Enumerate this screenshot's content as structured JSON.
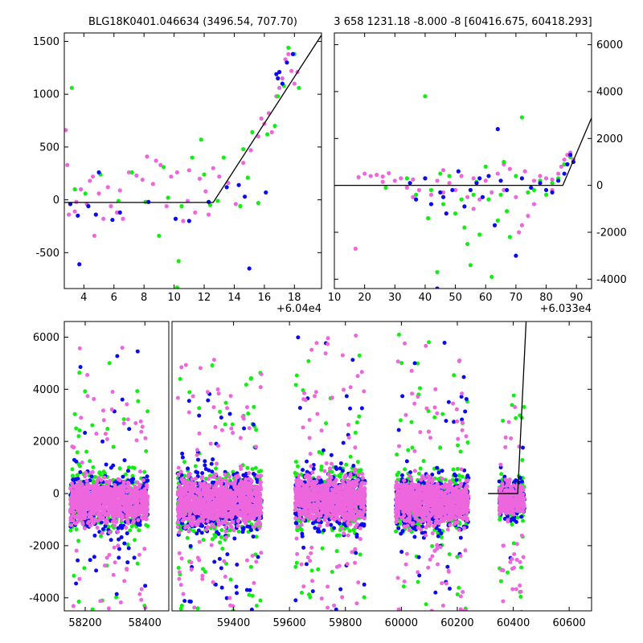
{
  "chart_data": [
    {
      "id": "top-left",
      "type": "scatter",
      "title": "BLG18K0401.046634 (3496.54, 707.70)",
      "x_offset_label": "+6.04e4",
      "xlim": [
        2.7,
        19.8
      ],
      "ylim": [
        -840,
        1580
      ],
      "x_ticks": [
        4,
        6,
        8,
        10,
        12,
        14,
        16,
        18
      ],
      "y_ticks": [
        -500,
        0,
        500,
        1000,
        1500
      ],
      "y_axis_side": "left",
      "colors": {
        "magenta": "#ee66dd",
        "green": "#11ee11",
        "blue": "#0b0bee",
        "model": "#000000"
      },
      "model_line": {
        "x": [
          2.7,
          12.6,
          19.8
        ],
        "y": [
          -25,
          -25,
          1560
        ]
      },
      "series": [
        {
          "color": "magenta",
          "points": [
            [
              2.8,
              660
            ],
            [
              2.9,
              330
            ],
            [
              3.0,
              -140
            ],
            [
              3.5,
              -20
            ],
            [
              3.8,
              100
            ],
            [
              4.2,
              -40
            ],
            [
              4.4,
              180
            ],
            [
              4.6,
              220
            ],
            [
              4.7,
              -340
            ],
            [
              5.0,
              60
            ],
            [
              5.3,
              -180
            ],
            [
              5.6,
              120
            ],
            [
              5.8,
              -60
            ],
            [
              6.2,
              -120
            ],
            [
              6.6,
              -180
            ],
            [
              7.0,
              260
            ],
            [
              7.5,
              230
            ],
            [
              7.9,
              190
            ],
            [
              8.2,
              410
            ],
            [
              8.8,
              370
            ],
            [
              9.1,
              330
            ],
            [
              9.5,
              -60
            ],
            [
              9.8,
              220
            ],
            [
              10.2,
              260
            ],
            [
              10.6,
              -200
            ],
            [
              11.0,
              280
            ],
            [
              11.4,
              -120
            ],
            [
              11.7,
              200
            ],
            [
              12.1,
              80
            ],
            [
              12.6,
              300
            ],
            [
              13.0,
              220
            ],
            [
              13.6,
              160
            ],
            [
              14.1,
              -40
            ],
            [
              14.6,
              350
            ],
            [
              15.1,
              470
            ],
            [
              15.6,
              600
            ],
            [
              16.0,
              720
            ],
            [
              16.3,
              820
            ],
            [
              16.5,
              640
            ],
            [
              16.8,
              980
            ],
            [
              17.0,
              1060
            ],
            [
              17.2,
              1150
            ],
            [
              17.4,
              1330
            ],
            [
              17.6,
              1380
            ],
            [
              17.8,
              1220
            ],
            [
              18.0,
              1100
            ],
            [
              18.2,
              1210
            ],
            [
              3.4,
              -110
            ],
            [
              6.4,
              90
            ],
            [
              8.6,
              150
            ],
            [
              10.9,
              -10
            ],
            [
              12.3,
              -140
            ],
            [
              15.8,
              770
            ]
          ]
        },
        {
          "color": "green",
          "points": [
            [
              3.2,
              1060
            ],
            [
              3.4,
              100
            ],
            [
              4.1,
              60
            ],
            [
              5.1,
              240
            ],
            [
              6.3,
              -10
            ],
            [
              7.2,
              260
            ],
            [
              8.1,
              -20
            ],
            [
              9.0,
              -340
            ],
            [
              9.3,
              310
            ],
            [
              9.6,
              20
            ],
            [
              10.2,
              -830
            ],
            [
              10.3,
              -580
            ],
            [
              10.5,
              -60
            ],
            [
              11.2,
              400
            ],
            [
              11.8,
              570
            ],
            [
              12.4,
              -50
            ],
            [
              12.9,
              -10
            ],
            [
              13.3,
              400
            ],
            [
              14.4,
              -60
            ],
            [
              14.6,
              480
            ],
            [
              15.2,
              640
            ],
            [
              15.6,
              -30
            ],
            [
              16.2,
              620
            ],
            [
              16.7,
              700
            ],
            [
              16.9,
              980
            ],
            [
              17.3,
              1080
            ],
            [
              17.6,
              1440
            ],
            [
              18.0,
              1380
            ],
            [
              18.3,
              1060
            ],
            [
              12.0,
              240
            ],
            [
              14.9,
              210
            ]
          ]
        },
        {
          "color": "blue",
          "points": [
            [
              3.1,
              -40
            ],
            [
              3.6,
              -150
            ],
            [
              3.7,
              -610
            ],
            [
              4.3,
              -60
            ],
            [
              4.8,
              -140
            ],
            [
              5.0,
              260
            ],
            [
              5.9,
              -190
            ],
            [
              6.4,
              -120
            ],
            [
              8.3,
              -20
            ],
            [
              10.1,
              -180
            ],
            [
              11.0,
              -200
            ],
            [
              12.3,
              -20
            ],
            [
              13.5,
              120
            ],
            [
              14.7,
              30
            ],
            [
              15.0,
              -650
            ],
            [
              16.1,
              70
            ],
            [
              16.8,
              1190
            ],
            [
              17.0,
              1210
            ],
            [
              17.2,
              1100
            ],
            [
              17.5,
              1300
            ],
            [
              17.9,
              1380
            ],
            [
              14.3,
              140
            ],
            [
              16.9,
              1150
            ]
          ]
        }
      ]
    },
    {
      "id": "top-right",
      "type": "scatter",
      "title": "3 658 1231.18 -8.000 -8 [60416.675, 60418.293]",
      "x_offset_label": "+6.033e4",
      "xlim": [
        10,
        95
      ],
      "ylim": [
        -4400,
        6500
      ],
      "x_ticks": [
        10,
        20,
        30,
        40,
        50,
        60,
        70,
        80,
        90
      ],
      "y_ticks": [
        -4000,
        -2000,
        0,
        2000,
        4000,
        6000
      ],
      "y_axis_side": "right",
      "colors": {
        "magenta": "#ee66dd",
        "green": "#11ee11",
        "blue": "#0b0bee",
        "model": "#000000"
      },
      "model_line": {
        "x": [
          10,
          85.5,
          95
        ],
        "y": [
          0,
          0,
          2880
        ]
      },
      "series": [
        {
          "color": "magenta",
          "points": [
            [
              17,
              -2700
            ],
            [
              18,
              350
            ],
            [
              20,
              500
            ],
            [
              22,
              400
            ],
            [
              24,
              450
            ],
            [
              26,
              380
            ],
            [
              28,
              520
            ],
            [
              30,
              200
            ],
            [
              32,
              300
            ],
            [
              34,
              -100
            ],
            [
              36,
              250
            ],
            [
              38,
              -200
            ],
            [
              40,
              300
            ],
            [
              42,
              -400
            ],
            [
              44,
              200
            ],
            [
              46,
              -300
            ],
            [
              48,
              100
            ],
            [
              50,
              -200
            ],
            [
              52,
              400
            ],
            [
              54,
              -500
            ],
            [
              56,
              300
            ],
            [
              58,
              -600
            ],
            [
              60,
              200
            ],
            [
              62,
              -300
            ],
            [
              64,
              500
            ],
            [
              66,
              -200
            ],
            [
              68,
              700
            ],
            [
              70,
              -500
            ],
            [
              71,
              -2000
            ],
            [
              72,
              -1700
            ],
            [
              73,
              600
            ],
            [
              74,
              -1300
            ],
            [
              76,
              200
            ],
            [
              78,
              400
            ],
            [
              80,
              300
            ],
            [
              82,
              250
            ],
            [
              84,
              500
            ],
            [
              85,
              800
            ],
            [
              86,
              1100
            ],
            [
              87,
              1300
            ],
            [
              88,
              1400
            ],
            [
              89,
              1100
            ],
            [
              26,
              150
            ],
            [
              36,
              -500
            ],
            [
              46,
              650
            ],
            [
              56,
              -1000
            ],
            [
              66,
              900
            ],
            [
              76,
              -800
            ],
            [
              82,
              -200
            ]
          ]
        },
        {
          "color": "green",
          "points": [
            [
              27,
              -100
            ],
            [
              34,
              300
            ],
            [
              37,
              -400
            ],
            [
              40,
              3800
            ],
            [
              41,
              -1400
            ],
            [
              42,
              -200
            ],
            [
              44,
              -3700
            ],
            [
              46,
              -800
            ],
            [
              48,
              400
            ],
            [
              50,
              -1200
            ],
            [
              52,
              -600
            ],
            [
              53,
              -1800
            ],
            [
              54,
              -2500
            ],
            [
              55,
              -3400
            ],
            [
              56,
              -400
            ],
            [
              58,
              -2100
            ],
            [
              60,
              800
            ],
            [
              61,
              -600
            ],
            [
              62,
              -3900
            ],
            [
              64,
              -1500
            ],
            [
              65,
              -400
            ],
            [
              66,
              1000
            ],
            [
              67,
              -1100
            ],
            [
              68,
              -2200
            ],
            [
              70,
              400
            ],
            [
              72,
              2900
            ],
            [
              74,
              -300
            ],
            [
              76,
              -200
            ],
            [
              78,
              200
            ],
            [
              80,
              -400
            ],
            [
              82,
              100
            ],
            [
              84,
              300
            ],
            [
              86,
              900
            ],
            [
              88,
              1200
            ],
            [
              45,
              500
            ],
            [
              57,
              150
            ]
          ]
        },
        {
          "color": "blue",
          "points": [
            [
              35,
              100
            ],
            [
              37,
              -600
            ],
            [
              40,
              300
            ],
            [
              42,
              -800
            ],
            [
              44,
              -4400
            ],
            [
              45,
              -300
            ],
            [
              47,
              -1200
            ],
            [
              49,
              -200
            ],
            [
              51,
              600
            ],
            [
              53,
              -900
            ],
            [
              55,
              -200
            ],
            [
              57,
              100
            ],
            [
              59,
              -500
            ],
            [
              61,
              400
            ],
            [
              63,
              -1700
            ],
            [
              64,
              2400
            ],
            [
              65,
              200
            ],
            [
              67,
              -200
            ],
            [
              70,
              -3000
            ],
            [
              72,
              300
            ],
            [
              75,
              -100
            ],
            [
              78,
              100
            ],
            [
              80,
              -200
            ],
            [
              82,
              -300
            ],
            [
              84,
              200
            ],
            [
              86,
              500
            ],
            [
              87,
              900
            ],
            [
              88,
              1300
            ],
            [
              89,
              1000
            ],
            [
              46,
              -500
            ],
            [
              58,
              300
            ]
          ]
        }
      ]
    },
    {
      "id": "bottom",
      "type": "scatter",
      "title": "",
      "xlim": [
        58130,
        60680
      ],
      "ylim": [
        -4500,
        6600
      ],
      "x_ticks": [
        58200,
        58400,
        59400,
        59600,
        59800,
        60000,
        60200,
        60400,
        60600
      ],
      "y_ticks": [
        -4000,
        -2000,
        0,
        2000,
        4000,
        6000
      ],
      "y_axis_side": "left",
      "axis_break": {
        "left_x": [
          58130,
          58480
        ],
        "right_x": [
          59180,
          60680
        ],
        "split_fraction": 0.137
      },
      "colors": {
        "magenta": "#ee66dd",
        "green": "#11ee11",
        "blue": "#0b0bee",
        "model": "#000000"
      },
      "model_line": {
        "x": [
          60310,
          60416,
          60446
        ],
        "y": [
          0,
          0,
          6600
        ]
      },
      "seasons": [
        {
          "x_range": [
            58150,
            58410
          ],
          "y_center": -300,
          "spread": 700,
          "tail_low": -4300,
          "tail_high": 6200
        },
        {
          "x_range": [
            59200,
            59500
          ],
          "y_center": -300,
          "spread": 800,
          "tail_low": -4200,
          "tail_high": 5600
        },
        {
          "x_range": [
            59620,
            59870
          ],
          "y_center": -200,
          "spread": 750,
          "tail_low": -4400,
          "tail_high": 6300
        },
        {
          "x_range": [
            59980,
            60240
          ],
          "y_center": -300,
          "spread": 750,
          "tail_low": -4400,
          "tail_high": 6400
        },
        {
          "x_range": [
            60350,
            60440
          ],
          "y_center": -200,
          "spread": 500,
          "tail_low": -4400,
          "tail_high": 4000
        }
      ]
    }
  ]
}
